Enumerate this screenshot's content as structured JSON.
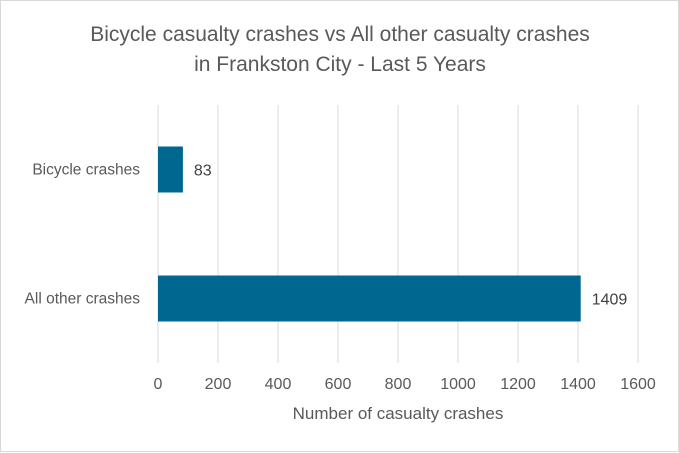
{
  "chart_data": {
    "type": "bar",
    "orientation": "horizontal",
    "title_lines": [
      "Bicycle casualty crashes vs All other casualty crashes",
      "in Frankston City - Last 5 Years"
    ],
    "categories": [
      "Bicycle crashes",
      "All other crashes"
    ],
    "values": [
      83,
      1409
    ],
    "data_labels": [
      "83",
      "1409"
    ],
    "xlabel": "Number of casualty crashes",
    "ylabel": "",
    "xlim": [
      0,
      1600
    ],
    "x_ticks": [
      "0",
      "200",
      "400",
      "600",
      "800",
      "1000",
      "1200",
      "1400",
      "1600"
    ],
    "grid": true,
    "legend": "none",
    "bar_color": "#006890"
  }
}
